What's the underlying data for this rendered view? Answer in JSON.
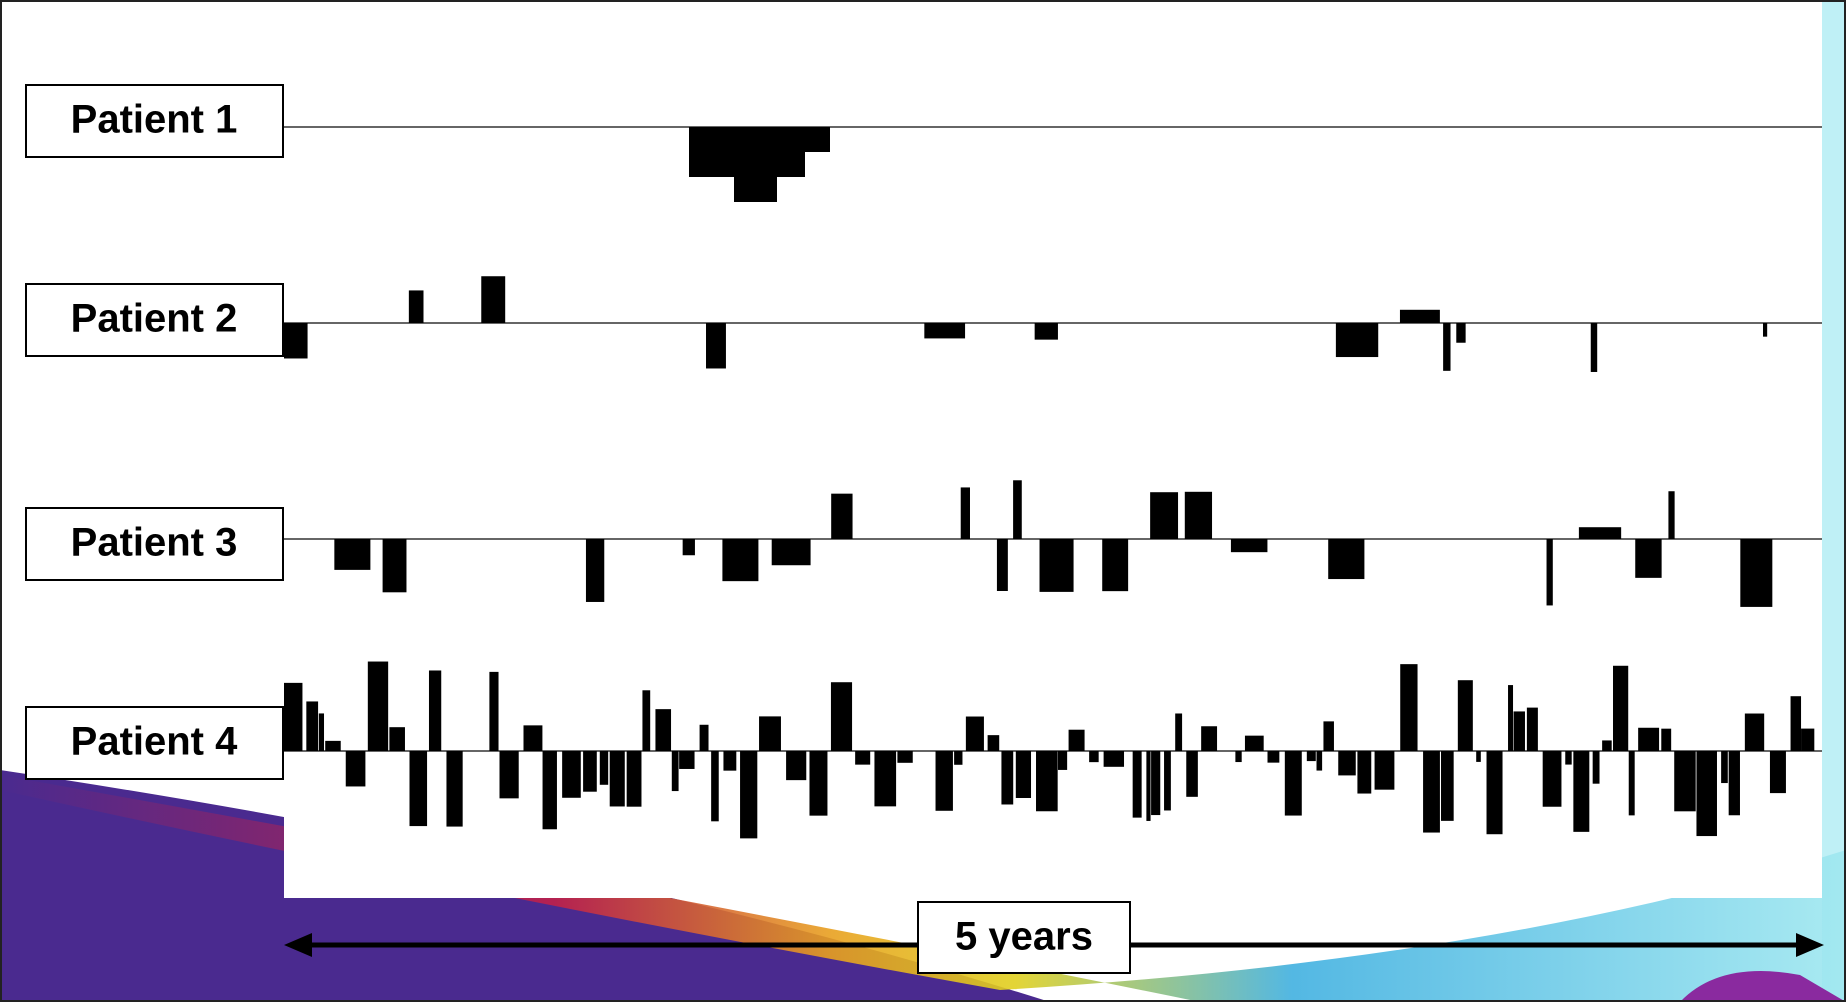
{
  "patients": [
    {
      "label": "Patient 1"
    },
    {
      "label": "Patient 2"
    },
    {
      "label": "Patient 3"
    },
    {
      "label": "Patient 4"
    }
  ],
  "timespan": "5 years"
}
